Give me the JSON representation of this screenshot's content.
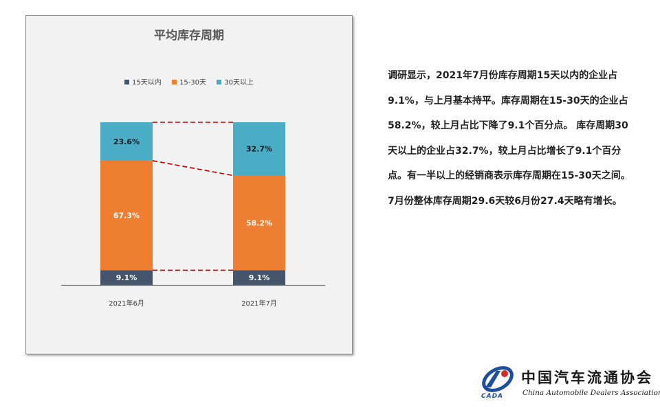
{
  "chart_data": {
    "type": "bar",
    "stacked": true,
    "title": "平均库存周期",
    "categories": [
      "2021年6月",
      "2021年7月"
    ],
    "series": [
      {
        "name": "15天以内",
        "color": "#44546a",
        "values": [
          9.1,
          9.1
        ],
        "labels": [
          "9.1%",
          "9.1%"
        ],
        "label_color": "#ffffff"
      },
      {
        "name": "15-30天",
        "color": "#ed7d31",
        "values": [
          67.3,
          58.2
        ],
        "labels": [
          "67.3%",
          "58.2%"
        ],
        "label_color": "#ffffff"
      },
      {
        "name": "30天以上",
        "color": "#4bacc6",
        "values": [
          23.6,
          32.7
        ],
        "labels": [
          "23.6%",
          "32.7%"
        ],
        "label_color": "#1a1a1a"
      }
    ],
    "ylim": [
      0,
      100
    ],
    "grid": false,
    "legend_position": "top",
    "connector_lines": "dashed",
    "connector_color": "#c00000"
  },
  "description": {
    "paragraphs": [
      "调研显示，2021年7月份库存周期15天以内的企业占9.1%，与上月基本持平。库存周期在15-30天的企业占58.2%，较上月占比下降了9.1个百分点。 库存周期30天以上的企业占32.7%，较上月占比增长了9.1个百分点。有一半以上的经销商表示库存周期在15-30天之间。",
      "7月份整体库存周期29.6天较6月份27.4天略有增长。"
    ]
  },
  "logo": {
    "name_cn": "中国汽车流通协会",
    "name_en": "China Automobile Dealers Association",
    "abbr": "CADA",
    "colors": {
      "blue": "#1f4f9c",
      "red": "#d62828"
    }
  }
}
